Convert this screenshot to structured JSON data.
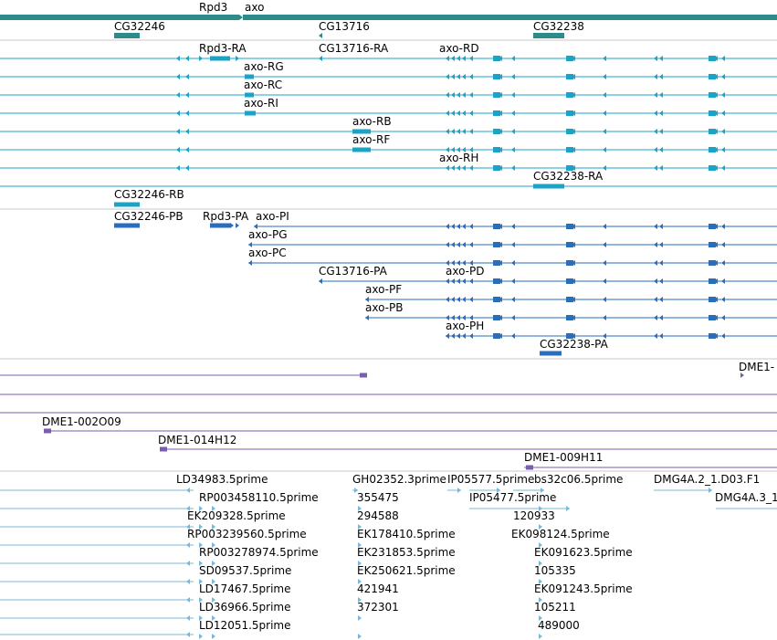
{
  "colors": {
    "gene": "#2e8b8b",
    "transcript": "#1ba3c6",
    "protein": "#2a6ebb",
    "clone": "#7a5cb0",
    "est": "#7ab8d8",
    "separator": "#c8c8c8"
  },
  "labels": [
    {
      "id": "gene-rpd3",
      "text": "Rpd3",
      "track": "genes"
    },
    {
      "id": "gene-axo",
      "text": "axo",
      "track": "genes"
    },
    {
      "id": "gene-cg32246",
      "text": "CG32246",
      "track": "genes"
    },
    {
      "id": "gene-cg13716",
      "text": "CG13716",
      "track": "genes"
    },
    {
      "id": "gene-cg32238",
      "text": "CG32238",
      "track": "genes"
    },
    {
      "id": "tx-rpd3-ra",
      "text": "Rpd3-RA",
      "track": "transcripts"
    },
    {
      "id": "tx-cg13716-ra",
      "text": "CG13716-RA",
      "track": "transcripts"
    },
    {
      "id": "tx-axo-rd",
      "text": "axo-RD",
      "track": "transcripts"
    },
    {
      "id": "tx-axo-rg",
      "text": "axo-RG",
      "track": "transcripts"
    },
    {
      "id": "tx-axo-rc",
      "text": "axo-RC",
      "track": "transcripts"
    },
    {
      "id": "tx-axo-ri",
      "text": "axo-RI",
      "track": "transcripts"
    },
    {
      "id": "tx-axo-rb",
      "text": "axo-RB",
      "track": "transcripts"
    },
    {
      "id": "tx-axo-rf",
      "text": "axo-RF",
      "track": "transcripts"
    },
    {
      "id": "tx-axo-rh",
      "text": "axo-RH",
      "track": "transcripts"
    },
    {
      "id": "tx-cg32238-ra",
      "text": "CG32238-RA",
      "track": "transcripts"
    },
    {
      "id": "tx-cg32246-rb",
      "text": "CG32246-RB",
      "track": "transcripts"
    },
    {
      "id": "pp-cg32246-pb",
      "text": "CG32246-PB",
      "track": "proteins"
    },
    {
      "id": "pp-rpd3-pa",
      "text": "Rpd3-PA",
      "track": "proteins"
    },
    {
      "id": "pp-axo-pi",
      "text": "axo-PI",
      "track": "proteins"
    },
    {
      "id": "pp-axo-pg",
      "text": "axo-PG",
      "track": "proteins"
    },
    {
      "id": "pp-axo-pc",
      "text": "axo-PC",
      "track": "proteins"
    },
    {
      "id": "pp-cg13716-pa",
      "text": "CG13716-PA",
      "track": "proteins"
    },
    {
      "id": "pp-axo-pd",
      "text": "axo-PD",
      "track": "proteins"
    },
    {
      "id": "pp-axo-pf",
      "text": "axo-PF",
      "track": "proteins"
    },
    {
      "id": "pp-axo-pb",
      "text": "axo-PB",
      "track": "proteins"
    },
    {
      "id": "pp-axo-ph",
      "text": "axo-PH",
      "track": "proteins"
    },
    {
      "id": "pp-cg32238-pa",
      "text": "CG32238-PA",
      "track": "proteins"
    },
    {
      "id": "cl-dme1-cut",
      "text": "DME1-",
      "track": "clones"
    },
    {
      "id": "cl-dme1-002o09",
      "text": "DME1-002O09",
      "track": "clones"
    },
    {
      "id": "cl-dme1-014h12",
      "text": "DME1-014H12",
      "track": "clones"
    },
    {
      "id": "cl-dme1-009h11",
      "text": "DME1-009H11",
      "track": "clones"
    },
    {
      "id": "est-ld34983",
      "text": "LD34983.5prime",
      "track": "ests"
    },
    {
      "id": "est-gh02352",
      "text": "GH02352.3prime",
      "track": "ests"
    },
    {
      "id": "est-ip05577",
      "text": "IP05577.5prime",
      "track": "ests"
    },
    {
      "id": "est-bs32c06",
      "text": "bs32c06.5prime",
      "track": "ests"
    },
    {
      "id": "est-dmg4a2",
      "text": "DMG4A.2_1.D03.F1",
      "track": "ests"
    },
    {
      "id": "est-rp003458110",
      "text": "RP003458110.5prime",
      "track": "ests"
    },
    {
      "id": "est-355475",
      "text": "355475",
      "track": "ests"
    },
    {
      "id": "est-ip05477",
      "text": "IP05477.5prime",
      "track": "ests"
    },
    {
      "id": "est-dmg4a3",
      "text": "DMG4A.3_1",
      "track": "ests"
    },
    {
      "id": "est-ek209328",
      "text": "EK209328.5prime",
      "track": "ests"
    },
    {
      "id": "est-294588",
      "text": "294588",
      "track": "ests"
    },
    {
      "id": "est-120933",
      "text": "120933",
      "track": "ests"
    },
    {
      "id": "est-rp003239560",
      "text": "RP003239560.5prime",
      "track": "ests"
    },
    {
      "id": "est-ek178410",
      "text": "EK178410.5prime",
      "track": "ests"
    },
    {
      "id": "est-ek098124",
      "text": "EK098124.5prime",
      "track": "ests"
    },
    {
      "id": "est-rp003278974",
      "text": "RP003278974.5prime",
      "track": "ests"
    },
    {
      "id": "est-ek231853",
      "text": "EK231853.5prime",
      "track": "ests"
    },
    {
      "id": "est-ek091623",
      "text": "EK091623.5prime",
      "track": "ests"
    },
    {
      "id": "est-sd09537",
      "text": "SD09537.5prime",
      "track": "ests"
    },
    {
      "id": "est-ek250621",
      "text": "EK250621.5prime",
      "track": "ests"
    },
    {
      "id": "est-105335",
      "text": "105335",
      "track": "ests"
    },
    {
      "id": "est-ld17467",
      "text": "LD17467.5prime",
      "track": "ests"
    },
    {
      "id": "est-421941",
      "text": "421941",
      "track": "ests"
    },
    {
      "id": "est-ek091243",
      "text": "EK091243.5prime",
      "track": "ests"
    },
    {
      "id": "est-ld36966",
      "text": "LD36966.5prime",
      "track": "ests"
    },
    {
      "id": "est-372301",
      "text": "372301",
      "track": "ests"
    },
    {
      "id": "est-105211",
      "text": "105211",
      "track": "ests"
    },
    {
      "id": "est-ld12051",
      "text": "LD12051.5prime",
      "track": "ests"
    },
    {
      "id": "est-489000",
      "text": "489000",
      "track": "ests"
    }
  ]
}
